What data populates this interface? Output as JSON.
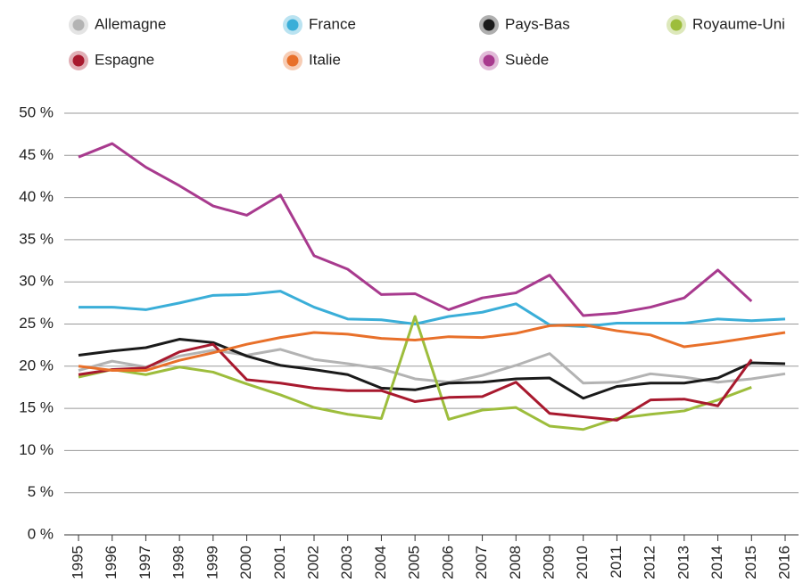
{
  "chart_data": {
    "type": "line",
    "x": [
      1995,
      1996,
      1997,
      1998,
      1999,
      2000,
      2001,
      2002,
      2003,
      2004,
      2005,
      2006,
      2007,
      2008,
      2009,
      2010,
      2011,
      2012,
      2013,
      2014,
      2015,
      2016
    ],
    "xlim": [
      1995,
      2016
    ],
    "ylim": [
      0,
      50
    ],
    "yticks": [
      {
        "value": 0,
        "label": "0 %"
      },
      {
        "value": 5,
        "label": "5 %"
      },
      {
        "value": 10,
        "label": "10 %"
      },
      {
        "value": 15,
        "label": "15 %"
      },
      {
        "value": 20,
        "label": "20 %"
      },
      {
        "value": 25,
        "label": "25 %"
      },
      {
        "value": 30,
        "label": "30 %"
      },
      {
        "value": 35,
        "label": "35 %"
      },
      {
        "value": 40,
        "label": "40 %"
      },
      {
        "value": 45,
        "label": "45 %"
      },
      {
        "value": 50,
        "label": "50 %"
      }
    ],
    "grid": true,
    "legend": "top",
    "series": [
      {
        "name": "Allemagne",
        "color": "#b3b3b3",
        "values": [
          19.5,
          20.6,
          19.9,
          21.2,
          21.9,
          21.3,
          22.0,
          20.8,
          20.3,
          19.7,
          18.5,
          18.1,
          18.9,
          20.1,
          21.5,
          18.0,
          18.1,
          19.1,
          18.7,
          18.1,
          18.5,
          19.1
        ]
      },
      {
        "name": "France",
        "color": "#3aaed8",
        "values": [
          27.0,
          27.0,
          26.7,
          27.5,
          28.4,
          28.5,
          28.9,
          27.0,
          25.6,
          25.5,
          25.0,
          25.9,
          26.4,
          27.4,
          24.9,
          24.7,
          25.1,
          25.1,
          25.1,
          25.6,
          25.4,
          25.6
        ]
      },
      {
        "name": "Pays-Bas",
        "color": "#1a1a1a",
        "values": [
          21.3,
          21.8,
          22.2,
          23.2,
          22.8,
          21.2,
          20.1,
          19.6,
          19.0,
          17.4,
          17.2,
          18.0,
          18.1,
          18.5,
          18.6,
          16.2,
          17.6,
          18.0,
          18.0,
          18.6,
          20.4,
          20.3
        ]
      },
      {
        "name": "Royaume-Uni",
        "color": "#9dbd3c",
        "values": [
          18.7,
          19.6,
          19.0,
          19.9,
          19.3,
          17.9,
          16.6,
          15.1,
          14.3,
          13.8,
          25.9,
          13.7,
          14.8,
          15.1,
          12.9,
          12.5,
          13.8,
          14.3,
          14.7,
          16.0,
          17.5,
          null
        ]
      },
      {
        "name": "Espagne",
        "color": "#a8192e",
        "values": [
          19.0,
          19.6,
          19.8,
          21.7,
          22.6,
          18.4,
          18.0,
          17.4,
          17.1,
          17.1,
          15.8,
          16.3,
          16.4,
          18.1,
          14.4,
          14.0,
          13.6,
          16.0,
          16.1,
          15.3,
          20.8,
          null
        ]
      },
      {
        "name": "Italie",
        "color": "#e8702a",
        "values": [
          20.0,
          19.5,
          19.5,
          20.7,
          21.6,
          22.6,
          23.4,
          24.0,
          23.8,
          23.3,
          23.1,
          23.5,
          23.4,
          23.9,
          24.8,
          24.9,
          24.2,
          23.7,
          22.3,
          22.8,
          23.4,
          24.0
        ]
      },
      {
        "name": "Suède",
        "color": "#a83a8e",
        "values": [
          44.8,
          46.4,
          43.6,
          41.4,
          39.0,
          37.9,
          40.3,
          33.1,
          31.5,
          28.5,
          28.6,
          26.7,
          28.1,
          28.7,
          30.8,
          26.0,
          26.3,
          27.0,
          28.1,
          31.4,
          27.7,
          null
        ]
      }
    ]
  }
}
